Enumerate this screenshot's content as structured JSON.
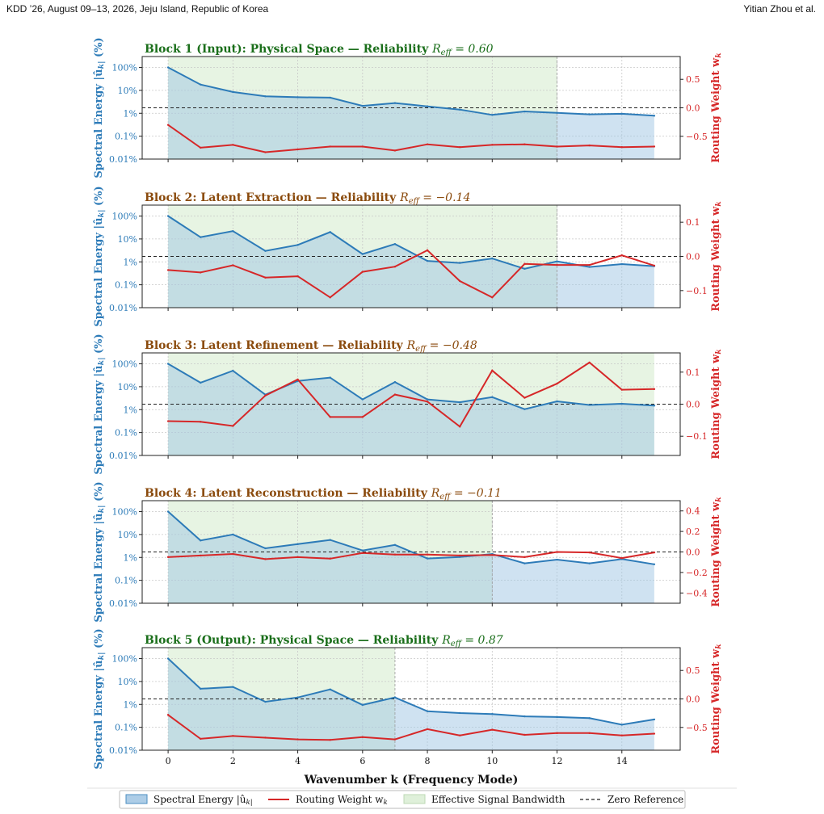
{
  "header": {
    "venue": "KDD ’26, August 09–13, 2026, Jeju Island, Republic of Korea",
    "authors": "Yitian Zhou et al."
  },
  "colors": {
    "energy_line": "#2d7bb8",
    "energy_fill": "#9fc5e3",
    "routing": "#d62728",
    "bandwidth": "#dff0da",
    "title_physical": "#1a6e1a",
    "title_latent": "#8a4a0c"
  },
  "chart_data": {
    "type": "line",
    "x": [
      0,
      1,
      2,
      3,
      4,
      5,
      6,
      7,
      8,
      9,
      10,
      11,
      12,
      13,
      14,
      15
    ],
    "xlim": [
      -0.8,
      15.8
    ],
    "xticks": [
      0,
      2,
      4,
      6,
      8,
      10,
      12,
      14
    ],
    "xlabel": "Wavenumber k (Frequency Mode)",
    "left_ylabel": "Spectral Energy |û_k| (%)",
    "right_ylabel": "Routing Weight w_k",
    "energy_scale": "log",
    "energy_ylim": [
      0.01,
      300
    ],
    "energy_ticks": [
      {
        "v": 100,
        "label": "100%"
      },
      {
        "v": 10,
        "label": "10%"
      },
      {
        "v": 1,
        "label": "1%"
      },
      {
        "v": 0.1,
        "label": "0.1%"
      },
      {
        "v": 0.01,
        "label": "0.01%"
      }
    ],
    "legend": [
      {
        "key": "energy",
        "label": "Spectral Energy |û_k|"
      },
      {
        "key": "routing",
        "label": "Routing Weight w_k"
      },
      {
        "key": "bandwidth",
        "label": "Effective Signal Bandwidth"
      },
      {
        "key": "zero",
        "label": "Zero Reference"
      }
    ],
    "legend_position": "bottom",
    "grid": true,
    "panels": [
      {
        "title_main": "Block 1 (Input): Physical Space — Reliability ",
        "title_r": "R_eff = 0.60",
        "kind": "physical",
        "bandwidth": 12,
        "right_ylim": [
          -0.9,
          0.9
        ],
        "right_ticks": [
          0.5,
          0.0,
          -0.5
        ],
        "right_tick_labels": [
          "0.5",
          "0.0",
          "−0.5"
        ],
        "energy": [
          100,
          18,
          8.5,
          5.5,
          5,
          4.8,
          2.1,
          2.8,
          2,
          1.45,
          0.85,
          1.2,
          1.05,
          0.9,
          0.95,
          0.78
        ],
        "routing": [
          -0.3,
          -0.7,
          -0.65,
          -0.78,
          -0.73,
          -0.68,
          -0.68,
          -0.75,
          -0.64,
          -0.69,
          -0.65,
          -0.64,
          -0.68,
          -0.66,
          -0.69,
          -0.68
        ]
      },
      {
        "title_main": "Block 2: Latent Extraction — Reliability ",
        "title_r": "R_eff = −0.14",
        "kind": "latent",
        "bandwidth": 12,
        "right_ylim": [
          -0.15,
          0.15
        ],
        "right_ticks": [
          0.1,
          0.0,
          -0.1
        ],
        "right_tick_labels": [
          "0.1",
          "0.0",
          "−0.1"
        ],
        "energy": [
          100,
          12,
          22,
          3,
          5.5,
          20,
          2.2,
          6,
          1.1,
          0.9,
          1.4,
          0.5,
          1.05,
          0.6,
          0.8,
          0.65
        ],
        "routing": [
          -0.04,
          -0.047,
          -0.026,
          -0.062,
          -0.058,
          -0.12,
          -0.045,
          -0.03,
          0.018,
          -0.072,
          -0.12,
          -0.022,
          -0.025,
          -0.025,
          0.003,
          -0.027
        ]
      },
      {
        "title_main": "Block 3: Latent Refinement — Reliability ",
        "title_r": "R_eff = −0.48",
        "kind": "latent",
        "bandwidth": 15,
        "right_ylim": [
          -0.16,
          0.16
        ],
        "right_ticks": [
          0.1,
          0.0,
          -0.1
        ],
        "right_tick_labels": [
          "0.1",
          "0.0",
          "−0.1"
        ],
        "energy": [
          100,
          15,
          50,
          4.5,
          18,
          25,
          2.8,
          16,
          2.8,
          2.1,
          3.5,
          1.05,
          2.3,
          1.6,
          1.8,
          1.5
        ],
        "routing": [
          -0.053,
          -0.055,
          -0.068,
          0.027,
          0.077,
          -0.04,
          -0.04,
          0.03,
          0.008,
          -0.07,
          0.105,
          0.02,
          0.064,
          0.13,
          0.045,
          0.047
        ]
      },
      {
        "title_main": "Block 4: Latent Reconstruction — Reliability ",
        "title_r": "R_eff = −0.11",
        "kind": "latent",
        "bandwidth": 10,
        "right_ylim": [
          -0.5,
          0.5
        ],
        "right_ticks": [
          0.4,
          0.2,
          0.0,
          -0.2,
          -0.4
        ],
        "right_tick_labels": [
          "0.4",
          "0.2",
          "0.0",
          "−0.2",
          "−0.4"
        ],
        "energy": [
          100,
          5.5,
          10,
          2.5,
          3.8,
          5.8,
          2,
          3.5,
          0.9,
          1.05,
          1.4,
          0.55,
          0.8,
          0.55,
          0.85,
          0.5
        ],
        "routing": [
          -0.05,
          -0.035,
          -0.02,
          -0.07,
          -0.05,
          -0.065,
          -0.01,
          -0.025,
          -0.025,
          -0.035,
          -0.03,
          -0.05,
          0.0,
          -0.005,
          -0.06,
          -0.005
        ]
      },
      {
        "title_main": "Block 5 (Output): Physical Space — Reliability ",
        "title_r": "R_eff = 0.87",
        "kind": "physical",
        "bandwidth": 7,
        "right_ylim": [
          -0.9,
          0.9
        ],
        "right_ticks": [
          0.5,
          0.0,
          -0.5
        ],
        "right_tick_labels": [
          "0.5",
          "0.0",
          "−0.5"
        ],
        "energy": [
          100,
          4.8,
          5.8,
          1.3,
          2,
          4.5,
          0.95,
          2,
          0.5,
          0.42,
          0.38,
          0.3,
          0.28,
          0.25,
          0.13,
          0.22
        ],
        "routing": [
          -0.28,
          -0.7,
          -0.65,
          -0.68,
          -0.71,
          -0.72,
          -0.67,
          -0.71,
          -0.53,
          -0.64,
          -0.54,
          -0.63,
          -0.6,
          -0.6,
          -0.64,
          -0.61
        ]
      }
    ]
  }
}
